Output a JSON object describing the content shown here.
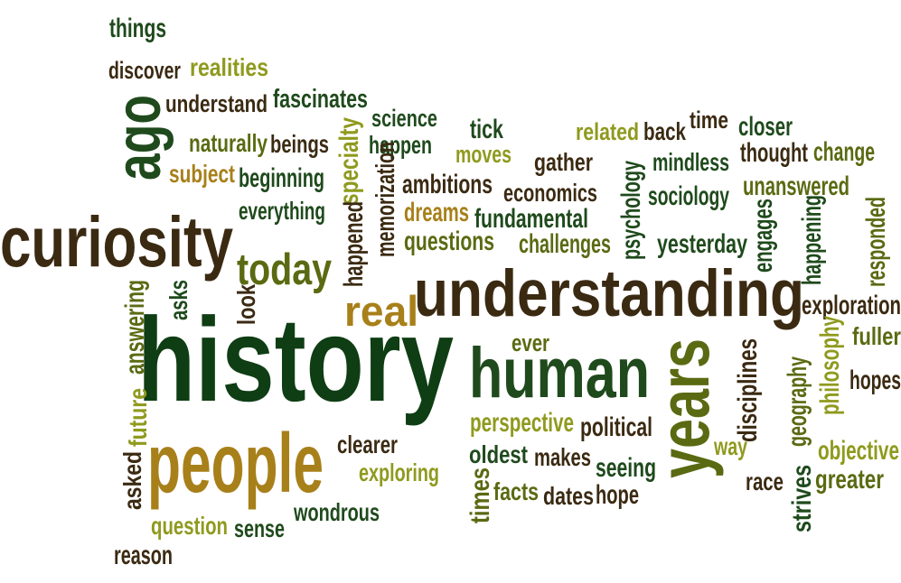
{
  "palette": {
    "dark_green": "#1f4a1c",
    "deep_green": "#0f3d14",
    "olive": "#5a6a12",
    "lime": "#8f9a1e",
    "gold": "#a8801a",
    "brown": "#3b2a12",
    "dark_brown": "#2b2410"
  },
  "words": [
    {
      "text": "history",
      "color": "deep_green",
      "rotated": false
    },
    {
      "text": "understanding",
      "color": "brown",
      "rotated": false
    },
    {
      "text": "curiosity",
      "color": "brown",
      "rotated": false
    },
    {
      "text": "people",
      "color": "gold",
      "rotated": false
    },
    {
      "text": "human",
      "color": "dark_green",
      "rotated": false
    },
    {
      "text": "years",
      "color": "olive",
      "rotated": true
    },
    {
      "text": "ago",
      "color": "dark_green",
      "rotated": true
    },
    {
      "text": "today",
      "color": "olive",
      "rotated": false
    },
    {
      "text": "real",
      "color": "gold",
      "rotated": false
    },
    {
      "text": "things",
      "color": "dark_green",
      "rotated": false
    },
    {
      "text": "discover",
      "color": "brown",
      "rotated": false
    },
    {
      "text": "realities",
      "color": "lime",
      "rotated": false
    },
    {
      "text": "understand",
      "color": "brown",
      "rotated": false
    },
    {
      "text": "fascinates",
      "color": "dark_green",
      "rotated": false
    },
    {
      "text": "naturally",
      "color": "olive",
      "rotated": false
    },
    {
      "text": "beings",
      "color": "brown",
      "rotated": false
    },
    {
      "text": "subject",
      "color": "gold",
      "rotated": false
    },
    {
      "text": "beginning",
      "color": "dark_green",
      "rotated": false
    },
    {
      "text": "everything",
      "color": "dark_green",
      "rotated": false
    },
    {
      "text": "science",
      "color": "dark_green",
      "rotated": false
    },
    {
      "text": "happen",
      "color": "dark_green",
      "rotated": false
    },
    {
      "text": "specialty",
      "color": "lime",
      "rotated": true
    },
    {
      "text": "memorization",
      "color": "brown",
      "rotated": true
    },
    {
      "text": "happened",
      "color": "brown",
      "rotated": true
    },
    {
      "text": "ambitions",
      "color": "brown",
      "rotated": false
    },
    {
      "text": "dreams",
      "color": "gold",
      "rotated": false
    },
    {
      "text": "questions",
      "color": "olive",
      "rotated": false
    },
    {
      "text": "tick",
      "color": "dark_green",
      "rotated": false
    },
    {
      "text": "moves",
      "color": "lime",
      "rotated": false
    },
    {
      "text": "gather",
      "color": "brown",
      "rotated": false
    },
    {
      "text": "economics",
      "color": "brown",
      "rotated": false
    },
    {
      "text": "fundamental",
      "color": "dark_green",
      "rotated": false
    },
    {
      "text": "challenges",
      "color": "olive",
      "rotated": false
    },
    {
      "text": "related",
      "color": "lime",
      "rotated": false
    },
    {
      "text": "back",
      "color": "brown",
      "rotated": false
    },
    {
      "text": "time",
      "color": "brown",
      "rotated": false
    },
    {
      "text": "closer",
      "color": "dark_green",
      "rotated": false
    },
    {
      "text": "mindless",
      "color": "dark_green",
      "rotated": false
    },
    {
      "text": "thought",
      "color": "brown",
      "rotated": false
    },
    {
      "text": "change",
      "color": "olive",
      "rotated": false
    },
    {
      "text": "unanswered",
      "color": "olive",
      "rotated": false
    },
    {
      "text": "psychology",
      "color": "dark_green",
      "rotated": true
    },
    {
      "text": "sociology",
      "color": "dark_green",
      "rotated": false
    },
    {
      "text": "yesterday",
      "color": "dark_green",
      "rotated": false
    },
    {
      "text": "engages",
      "color": "dark_green",
      "rotated": true
    },
    {
      "text": "happening",
      "color": "dark_green",
      "rotated": true
    },
    {
      "text": "responded",
      "color": "olive",
      "rotated": true
    },
    {
      "text": "exploration",
      "color": "brown",
      "rotated": false
    },
    {
      "text": "fuller",
      "color": "olive",
      "rotated": false
    },
    {
      "text": "hopes",
      "color": "brown",
      "rotated": false
    },
    {
      "text": "philosophy",
      "color": "lime",
      "rotated": true
    },
    {
      "text": "geography",
      "color": "olive",
      "rotated": true
    },
    {
      "text": "disciplines",
      "color": "brown",
      "rotated": true
    },
    {
      "text": "objective",
      "color": "lime",
      "rotated": false
    },
    {
      "text": "greater",
      "color": "olive",
      "rotated": false
    },
    {
      "text": "strives",
      "color": "dark_green",
      "rotated": true
    },
    {
      "text": "race",
      "color": "brown",
      "rotated": false
    },
    {
      "text": "way",
      "color": "lime",
      "rotated": false
    },
    {
      "text": "ever",
      "color": "olive",
      "rotated": false
    },
    {
      "text": "perspective",
      "color": "lime",
      "rotated": false
    },
    {
      "text": "political",
      "color": "brown",
      "rotated": false
    },
    {
      "text": "oldest",
      "color": "dark_green",
      "rotated": false
    },
    {
      "text": "makes",
      "color": "brown",
      "rotated": false
    },
    {
      "text": "seeing",
      "color": "dark_green",
      "rotated": false
    },
    {
      "text": "times",
      "color": "olive",
      "rotated": true
    },
    {
      "text": "facts",
      "color": "olive",
      "rotated": false
    },
    {
      "text": "dates",
      "color": "brown",
      "rotated": false
    },
    {
      "text": "hope",
      "color": "brown",
      "rotated": false
    },
    {
      "text": "clearer",
      "color": "brown",
      "rotated": false
    },
    {
      "text": "exploring",
      "color": "lime",
      "rotated": false
    },
    {
      "text": "wondrous",
      "color": "dark_green",
      "rotated": false
    },
    {
      "text": "sense",
      "color": "dark_green",
      "rotated": false
    },
    {
      "text": "question",
      "color": "lime",
      "rotated": false
    },
    {
      "text": "reason",
      "color": "brown",
      "rotated": false
    },
    {
      "text": "asked",
      "color": "brown",
      "rotated": true
    },
    {
      "text": "future",
      "color": "lime",
      "rotated": true
    },
    {
      "text": "answering",
      "color": "olive",
      "rotated": true
    },
    {
      "text": "asks",
      "color": "dark_green",
      "rotated": true
    },
    {
      "text": "look",
      "color": "brown",
      "rotated": true
    }
  ]
}
